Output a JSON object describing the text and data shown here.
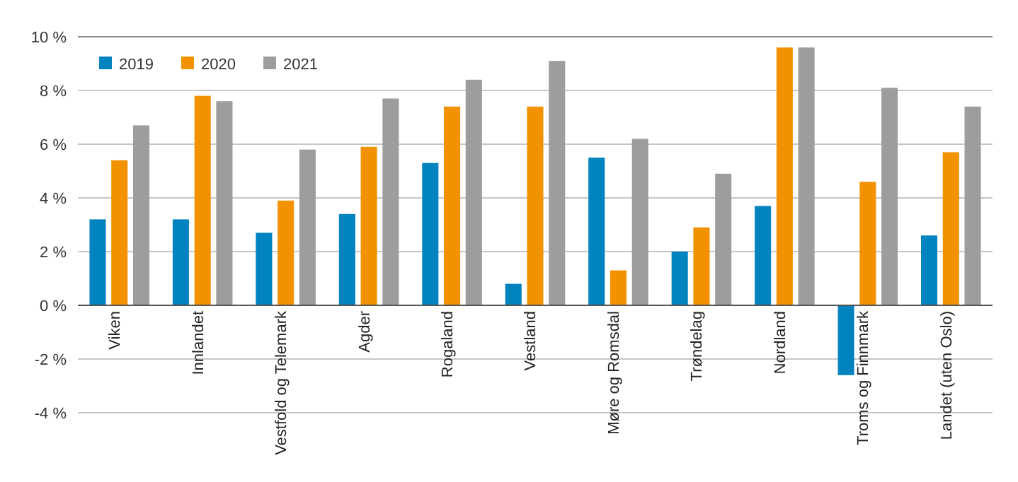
{
  "chart_data": {
    "type": "bar",
    "categories": [
      "Viken",
      "Innlandet",
      "Vestfold og Telemark",
      "Agder",
      "Rogaland",
      "Vestland",
      "Møre og Romsdal",
      "Trøndelag",
      "Nordland",
      "Troms og Finnmark",
      "Landet (uten Oslo)"
    ],
    "series": [
      {
        "name": "2019",
        "color": "#0083be",
        "values": [
          3.2,
          3.2,
          2.7,
          3.4,
          5.3,
          0.8,
          5.5,
          2.0,
          3.7,
          -2.6,
          2.6
        ]
      },
      {
        "name": "2020",
        "color": "#f39200",
        "values": [
          5.4,
          7.8,
          3.9,
          5.9,
          7.4,
          7.4,
          1.3,
          2.9,
          9.6,
          4.6,
          5.7
        ]
      },
      {
        "name": "2021",
        "color": "#9d9d9c",
        "values": [
          6.7,
          7.6,
          5.8,
          7.7,
          8.4,
          9.1,
          6.2,
          4.9,
          9.6,
          8.1,
          7.4
        ]
      }
    ],
    "ylim": [
      -4,
      10
    ],
    "yticks": [
      {
        "value": -4,
        "label": "-4 %"
      },
      {
        "value": -2,
        "label": "-2 %"
      },
      {
        "value": 0,
        "label": "0 %"
      },
      {
        "value": 2,
        "label": "2 %"
      },
      {
        "value": 4,
        "label": "4 %"
      },
      {
        "value": 6,
        "label": "6 %"
      },
      {
        "value": 8,
        "label": "8 %"
      },
      {
        "value": 10,
        "label": "10 %"
      }
    ],
    "grid": "y",
    "legend": "top left"
  }
}
